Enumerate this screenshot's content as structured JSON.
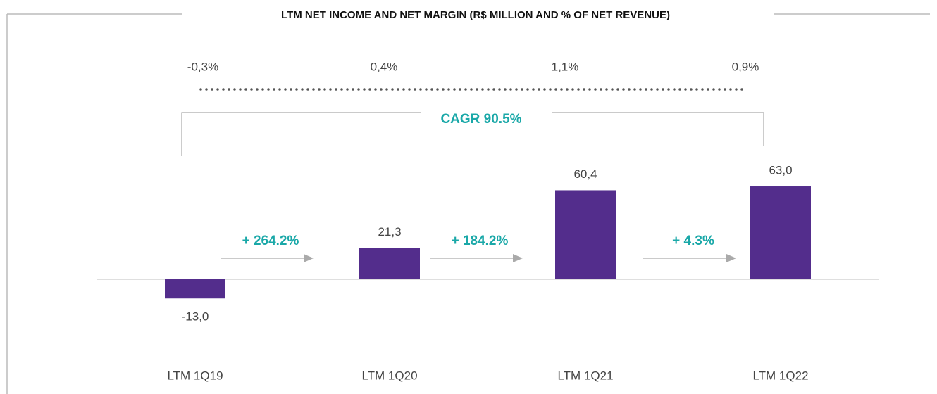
{
  "chart_data": {
    "type": "bar",
    "title": "LTM NET INCOME AND NET MARGIN (R$ MILLION AND % OF NET REVENUE)",
    "categories": [
      "LTM 1Q19",
      "LTM 1Q20",
      "LTM 1Q21",
      "LTM 1Q22"
    ],
    "series": [
      {
        "color": "#532d8c",
        "values": [
          -13.0,
          21.3,
          60.4,
          63.0
        ],
        "value_labels": [
          "-13,0",
          "21,3",
          "60,4",
          "63,0"
        ]
      },
      {
        "type": "margin",
        "color": "#555555",
        "values": [
          -0.3,
          0.4,
          1.1,
          0.9
        ],
        "value_labels": [
          "-0,3%",
          "0,4%",
          "1,1%",
          "0,9%"
        ]
      }
    ],
    "ylim": [
      -30,
      100
    ],
    "annotations": [
      "+ 264.2%",
      "+ 184.2%",
      "+ 4.3%"
    ],
    "cagr": "CAGR 90.5%",
    "annotation_color": "#1aa8a8"
  }
}
